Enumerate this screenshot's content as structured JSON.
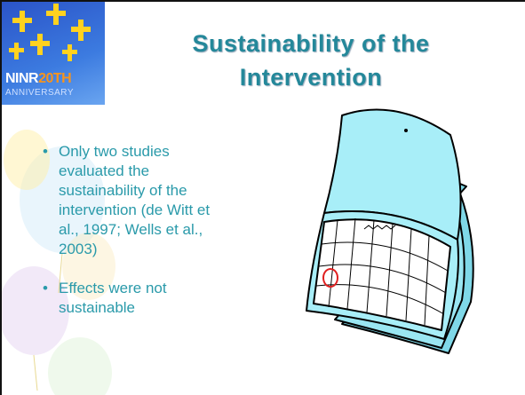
{
  "logo": {
    "name": "NINR",
    "number": "20TH",
    "subtitle": "ANNIVERSARY"
  },
  "title": [
    "Sustainability of the",
    "Intervention"
  ],
  "bullets": [
    "Only two studies evaluated the sustainability of the intervention (de Witt et al., 1997; Wells et al., 2003)",
    "Effects were not sustainable"
  ]
}
